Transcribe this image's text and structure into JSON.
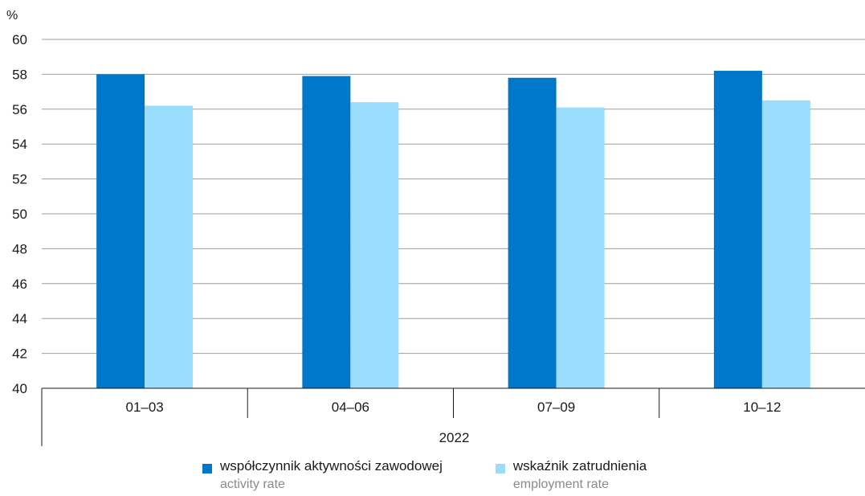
{
  "chart_data": {
    "type": "bar",
    "unit_label": "%",
    "ylim": [
      40,
      60
    ],
    "yticks": [
      40,
      42,
      44,
      46,
      48,
      50,
      52,
      54,
      56,
      58,
      60
    ],
    "grid": true,
    "categories": [
      "01–03",
      "04–06",
      "07–09",
      "10–12"
    ],
    "group_label": "2022",
    "series": [
      {
        "name": "współczynnik aktywności zawodowej",
        "name_en": "activity rate",
        "color": "#0077c8",
        "values": [
          58.0,
          57.9,
          57.8,
          58.2
        ]
      },
      {
        "name": "wskaźnik zatrudnienia",
        "name_en": "employment rate",
        "color": "#9adcfb",
        "values": [
          56.2,
          56.4,
          56.1,
          56.5
        ]
      }
    ],
    "legend_position": "bottom"
  }
}
